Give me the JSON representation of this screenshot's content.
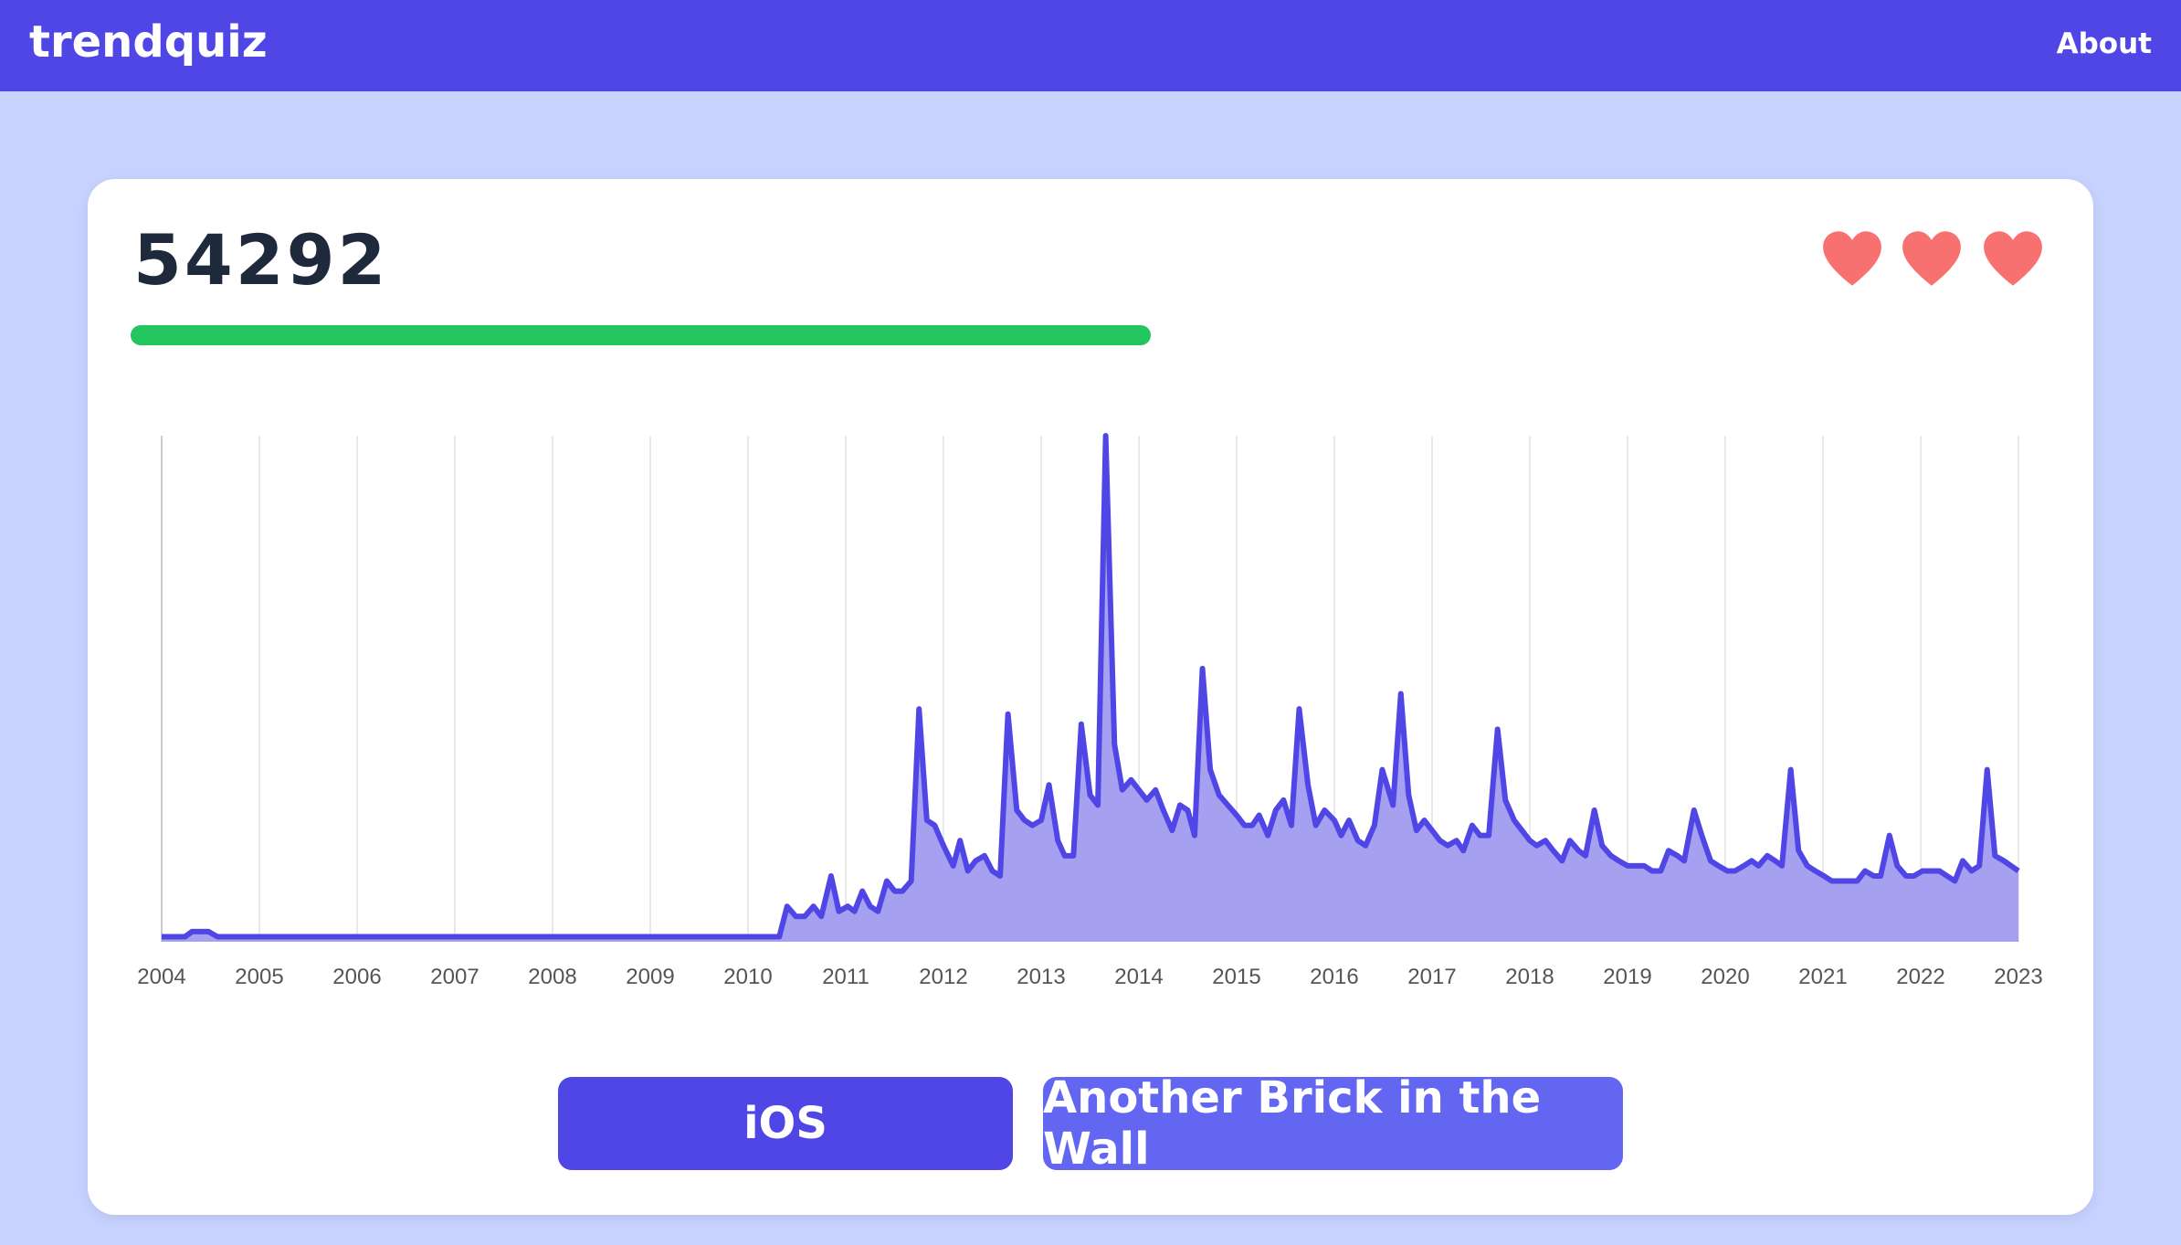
{
  "header": {
    "title": "trendquiz",
    "nav": "About"
  },
  "score": 54292,
  "options": [
    "iOS",
    "Another Brick in the Wall"
  ],
  "chart_data": {
    "type": "area",
    "color": "#4f46e5",
    "fill": "#a5a0ef",
    "grid": "x",
    "xlim": [
      2004,
      2023
    ],
    "ylim": [
      0,
      100
    ],
    "xticks": [
      2004,
      2005,
      2006,
      2007,
      2008,
      2009,
      2010,
      2011,
      2012,
      2013,
      2014,
      2015,
      2016,
      2017,
      2018,
      2019,
      2020,
      2021,
      2022,
      2023
    ],
    "x": [
      2004,
      2004.24,
      2004.31,
      2004.48,
      2004.57,
      2010.32,
      2010.4,
      2010.49,
      2010.58,
      2010.67,
      2010.75,
      2010.85,
      2010.93,
      2011.02,
      2011.09,
      2011.17,
      2011.25,
      2011.33,
      2011.42,
      2011.5,
      2011.58,
      2011.67,
      2011.75,
      2011.83,
      2011.91,
      2012,
      2012.1,
      2012.17,
      2012.25,
      2012.33,
      2012.42,
      2012.5,
      2012.58,
      2012.66,
      2012.75,
      2012.83,
      2012.91,
      2013,
      2013.08,
      2013.17,
      2013.24,
      2013.33,
      2013.41,
      2013.5,
      2013.58,
      2013.66,
      2013.75,
      2013.83,
      2013.92,
      2014,
      2014.08,
      2014.17,
      2014.25,
      2014.34,
      2014.42,
      2014.5,
      2014.57,
      2014.65,
      2014.73,
      2014.82,
      2014.91,
      2015,
      2015.08,
      2015.16,
      2015.23,
      2015.32,
      2015.4,
      2015.48,
      2015.56,
      2015.64,
      2015.73,
      2015.81,
      2015.9,
      2016,
      2016.07,
      2016.15,
      2016.24,
      2016.32,
      2016.41,
      2016.49,
      2016.6,
      2016.68,
      2016.76,
      2016.84,
      2016.92,
      2017,
      2017.08,
      2017.16,
      2017.25,
      2017.32,
      2017.41,
      2017.49,
      2017.58,
      2017.67,
      2017.75,
      2017.84,
      2017.92,
      2018,
      2018.07,
      2018.16,
      2018.24,
      2018.33,
      2018.41,
      2018.5,
      2018.57,
      2018.66,
      2018.74,
      2018.83,
      2018.91,
      2019,
      2019.08,
      2019.17,
      2019.25,
      2019.34,
      2019.42,
      2019.51,
      2019.58,
      2019.68,
      2019.76,
      2019.85,
      2019.93,
      2020.02,
      2020.1,
      2020.19,
      2020.27,
      2020.34,
      2020.43,
      2020.51,
      2020.58,
      2020.67,
      2020.75,
      2020.84,
      2020.92,
      2021.01,
      2021.09,
      2021.18,
      2021.26,
      2021.35,
      2021.43,
      2021.52,
      2021.59,
      2021.68,
      2021.76,
      2021.85,
      2021.93,
      2022.02,
      2022.1,
      2022.19,
      2022.27,
      2022.35,
      2022.43,
      2022.52,
      2022.6,
      2022.68,
      2022.76,
      2022.85,
      2023
    ],
    "values": [
      1,
      1,
      2,
      2,
      1,
      1,
      7,
      5,
      5,
      7,
      5,
      13,
      6,
      7,
      6,
      10,
      7,
      6,
      12,
      10,
      10,
      12,
      46,
      24,
      23,
      19,
      15,
      20,
      14,
      16,
      17,
      14,
      13,
      45,
      26,
      24,
      23,
      24,
      31,
      20,
      17,
      17,
      43,
      29,
      27,
      100,
      39,
      30,
      32,
      30,
      28,
      30,
      26,
      22,
      27,
      26,
      21,
      54,
      34,
      29,
      27,
      25,
      23,
      23,
      25,
      21,
      26,
      28,
      23,
      46,
      31,
      23,
      26,
      24,
      21,
      24,
      20,
      19,
      23,
      34,
      27,
      49,
      29,
      22,
      24,
      22,
      20,
      19,
      20,
      18,
      23,
      21,
      21,
      42,
      28,
      24,
      22,
      20,
      19,
      20,
      18,
      16,
      20,
      18,
      17,
      26,
      19,
      17,
      16,
      15,
      15,
      15,
      14,
      14,
      18,
      17,
      16,
      26,
      21,
      16,
      15,
      14,
      14,
      15,
      16,
      15,
      17,
      16,
      15,
      34,
      18,
      15,
      14,
      13,
      12,
      12,
      12,
      12,
      14,
      13,
      13,
      21,
      15,
      13,
      13,
      14,
      14,
      14,
      13,
      12,
      16,
      14,
      15,
      34,
      17,
      16,
      14
    ]
  }
}
